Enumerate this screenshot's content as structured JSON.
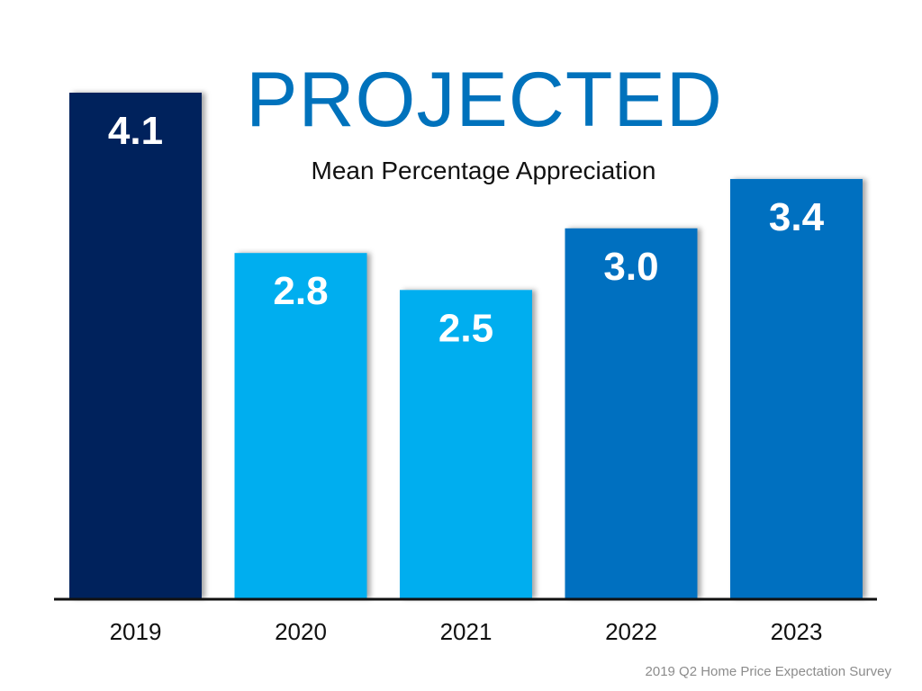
{
  "chart_data": {
    "type": "bar",
    "title": "PROJECTED",
    "subtitle": "Mean Percentage Appreciation",
    "categories": [
      "2019",
      "2020",
      "2021",
      "2022",
      "2023"
    ],
    "values": [
      4.1,
      2.8,
      2.5,
      3.0,
      3.4
    ],
    "value_labels": [
      "4.1",
      "2.8",
      "2.5",
      "3.0",
      "3.4"
    ],
    "bar_colors": [
      "#00205b",
      "#00aeef",
      "#00aeef",
      "#0070c0",
      "#0070c0"
    ],
    "ylim": [
      0,
      4.1
    ],
    "xlabel": "",
    "ylabel": "",
    "grid": false,
    "legend": false,
    "source": "2019 Q2 Home Price Expectation Survey"
  },
  "colors": {
    "title": "#0072bc",
    "axis": "#111111",
    "value_label": "#ffffff"
  }
}
